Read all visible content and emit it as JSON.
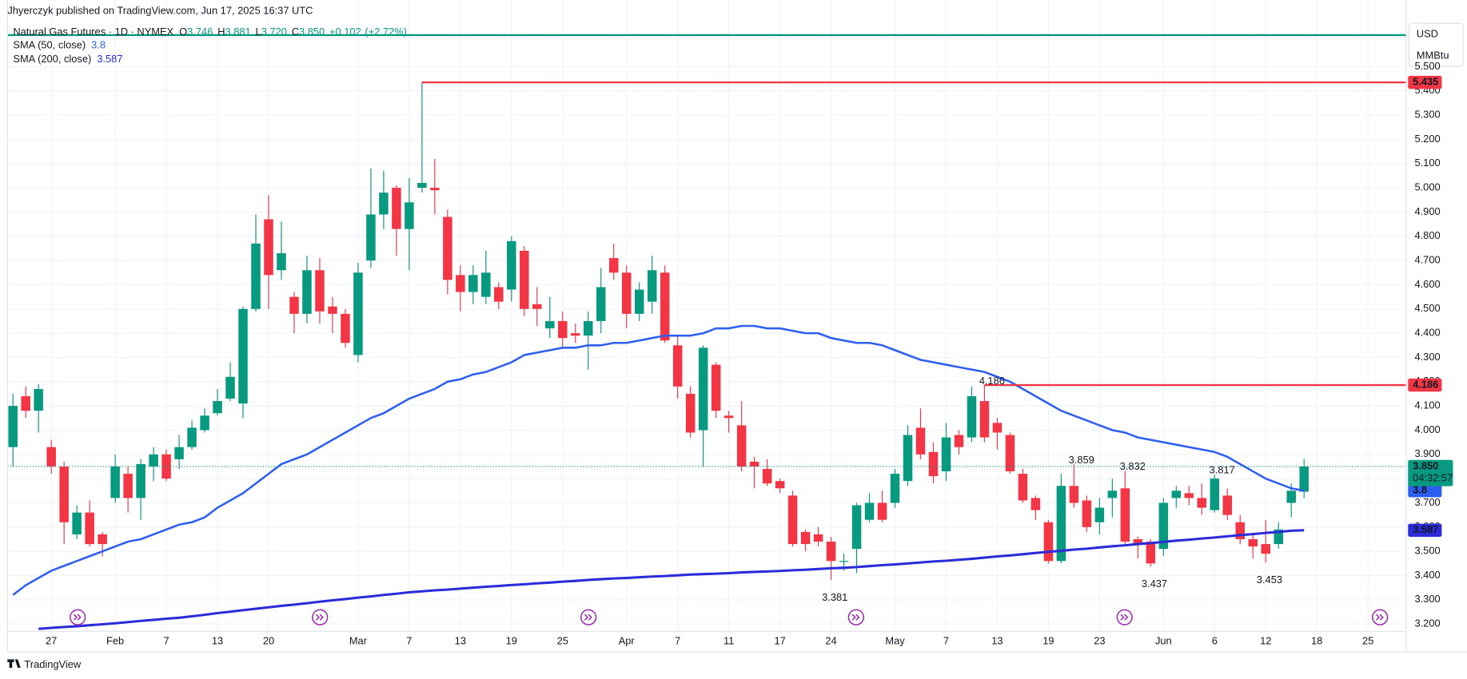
{
  "header": {
    "byline": "Jhyerczyk published on TradingView.com, Jun 17, 2025 16:37 UTC"
  },
  "footer": {
    "brand": "TradingView"
  },
  "chart_data": {
    "type": "candlestick",
    "title": "Natural Gas Futures · 1D · NYMEX",
    "ohlc_letters": [
      "O",
      "H",
      "L",
      "C"
    ],
    "last_bar_labels": {
      "open": "3.746",
      "high": "3.881",
      "low": "3.720",
      "close": "3.850"
    },
    "change": {
      "value": 0.102,
      "label": "+0.102"
    },
    "change_pct": {
      "value": 2.72,
      "label": "(+2.72%)"
    },
    "countdown": "04:32:57",
    "currency": "USD",
    "unit": "MMBtu",
    "up_color": "#089981",
    "down_color": "#f23645",
    "grid": true,
    "categories": [
      null,
      null,
      null,
      "27",
      null,
      null,
      null,
      null,
      "Feb",
      null,
      null,
      null,
      "7",
      null,
      null,
      null,
      "13",
      null,
      null,
      null,
      "20",
      null,
      null,
      null,
      null,
      null,
      null,
      "Mar",
      null,
      null,
      null,
      "7",
      null,
      null,
      null,
      "13",
      null,
      null,
      null,
      "19",
      null,
      null,
      null,
      "25",
      null,
      null,
      null,
      null,
      "Apr",
      null,
      null,
      null,
      "7",
      null,
      null,
      null,
      "11",
      null,
      null,
      null,
      "17",
      null,
      null,
      null,
      "24",
      null,
      null,
      null,
      null,
      "May",
      null,
      null,
      null,
      "7",
      null,
      null,
      null,
      "13",
      null,
      null,
      null,
      "19",
      null,
      null,
      null,
      "23",
      null,
      null,
      null,
      null,
      "Jun",
      null,
      null,
      null,
      "6",
      null,
      null,
      null,
      "12",
      null,
      null,
      null,
      "18",
      null,
      null,
      null,
      "25",
      null,
      null,
      null
    ],
    "open": [
      3.93,
      4.14,
      4.08,
      3.93,
      3.85,
      3.57,
      3.66,
      3.57,
      3.72,
      3.82,
      3.72,
      3.85,
      3.9,
      3.88,
      3.93,
      4.0,
      4.07,
      4.13,
      4.11,
      4.5,
      4.87,
      4.66,
      4.55,
      4.48,
      4.66,
      4.51,
      4.48,
      4.31,
      4.7,
      4.89,
      5.0,
      4.83,
      5.0,
      5.0,
      4.88,
      4.64,
      4.57,
      4.55,
      4.59,
      4.58,
      4.74,
      4.52,
      4.42,
      4.45,
      4.4,
      4.39,
      4.45,
      4.71,
      4.65,
      4.48,
      4.53,
      4.65,
      4.35,
      4.15,
      4.0,
      4.27,
      4.06,
      4.02,
      3.87,
      3.84,
      3.79,
      3.73,
      3.58,
      3.57,
      3.54,
      3.46,
      3.51,
      3.63,
      3.7,
      3.7,
      3.79,
      4.01,
      3.91,
      3.83,
      3.98,
      3.97,
      4.12,
      4.03,
      3.98,
      3.82,
      3.72,
      3.62,
      3.46,
      3.77,
      3.71,
      3.62,
      3.72,
      3.76,
      3.55,
      3.54,
      3.51,
      3.72,
      3.74,
      3.72,
      3.67,
      3.73,
      3.62,
      3.55,
      3.53,
      3.53,
      3.7,
      3.746,
      null,
      null,
      null,
      null,
      null,
      null,
      null,
      null
    ],
    "high": [
      4.15,
      4.18,
      4.19,
      3.96,
      3.87,
      3.69,
      3.71,
      3.58,
      3.9,
      3.85,
      3.88,
      3.93,
      3.92,
      3.98,
      4.04,
      4.09,
      4.17,
      4.28,
      4.51,
      4.89,
      4.97,
      4.86,
      4.57,
      4.72,
      4.71,
      4.55,
      4.5,
      4.69,
      5.08,
      5.07,
      5.01,
      5.04,
      5.435,
      5.12,
      4.91,
      4.68,
      4.68,
      4.74,
      4.61,
      4.8,
      4.76,
      4.59,
      4.55,
      4.49,
      4.44,
      4.49,
      4.67,
      4.77,
      4.68,
      4.61,
      4.72,
      4.68,
      4.39,
      4.18,
      4.35,
      4.28,
      4.08,
      4.12,
      3.89,
      3.88,
      3.8,
      3.75,
      3.59,
      3.6,
      3.56,
      3.49,
      3.7,
      3.74,
      3.75,
      3.84,
      4.02,
      4.09,
      3.95,
      4.03,
      4.0,
      4.18,
      4.186,
      4.05,
      3.99,
      3.84,
      3.73,
      3.63,
      3.82,
      3.859,
      3.73,
      3.72,
      3.8,
      3.832,
      3.56,
      3.55,
      3.72,
      3.77,
      3.77,
      3.78,
      3.817,
      3.76,
      3.65,
      3.57,
      3.63,
      3.62,
      3.78,
      3.881,
      null,
      null,
      null,
      null,
      null,
      null,
      null,
      null
    ],
    "low": [
      3.85,
      4.05,
      3.99,
      3.82,
      3.53,
      3.55,
      3.52,
      3.48,
      3.7,
      3.66,
      3.63,
      3.79,
      3.79,
      3.84,
      3.92,
      3.99,
      4.06,
      4.12,
      4.05,
      4.49,
      4.5,
      4.62,
      4.4,
      4.44,
      4.44,
      4.4,
      4.34,
      4.28,
      4.67,
      4.83,
      4.72,
      4.66,
      4.98,
      4.89,
      4.56,
      4.49,
      4.52,
      4.52,
      4.5,
      4.53,
      4.47,
      4.43,
      4.38,
      4.34,
      4.36,
      4.25,
      4.4,
      4.62,
      4.42,
      4.45,
      4.48,
      4.36,
      4.13,
      3.97,
      3.85,
      4.05,
      3.99,
      3.83,
      3.76,
      3.77,
      3.74,
      3.52,
      3.5,
      3.52,
      3.381,
      3.42,
      3.41,
      3.62,
      3.62,
      3.68,
      3.77,
      3.88,
      3.78,
      3.79,
      3.9,
      3.95,
      3.95,
      3.92,
      3.82,
      3.7,
      3.63,
      3.45,
      3.45,
      3.68,
      3.58,
      3.57,
      3.64,
      3.53,
      3.47,
      3.437,
      3.48,
      3.68,
      3.69,
      3.65,
      3.66,
      3.63,
      3.53,
      3.47,
      3.453,
      3.51,
      3.64,
      3.72,
      null,
      null,
      null,
      null,
      null,
      null,
      null,
      null
    ],
    "close": [
      4.1,
      4.08,
      4.17,
      3.85,
      3.62,
      3.66,
      3.53,
      3.53,
      3.85,
      3.72,
      3.86,
      3.9,
      3.8,
      3.93,
      4.01,
      4.06,
      4.12,
      4.22,
      4.5,
      4.77,
      4.64,
      4.73,
      4.48,
      4.66,
      4.49,
      4.48,
      4.36,
      4.65,
      4.89,
      4.98,
      4.83,
      4.94,
      5.02,
      4.99,
      4.62,
      4.57,
      4.64,
      4.65,
      4.53,
      4.78,
      4.5,
      4.5,
      4.45,
      4.38,
      4.39,
      4.45,
      4.59,
      4.65,
      4.48,
      4.58,
      4.66,
      4.37,
      4.18,
      3.99,
      4.34,
      4.08,
      4.05,
      3.85,
      3.85,
      3.78,
      3.76,
      3.53,
      3.53,
      3.54,
      3.46,
      3.46,
      3.69,
      3.7,
      3.63,
      3.82,
      3.98,
      3.9,
      3.81,
      3.97,
      3.93,
      4.14,
      3.97,
      3.99,
      3.83,
      3.71,
      3.67,
      3.46,
      3.77,
      3.7,
      3.6,
      3.68,
      3.75,
      3.54,
      3.53,
      3.45,
      3.7,
      3.75,
      3.72,
      3.68,
      3.8,
      3.65,
      3.55,
      3.52,
      3.49,
      3.59,
      3.75,
      3.85,
      null,
      null,
      null,
      null,
      null,
      null,
      null,
      null
    ],
    "indicators": [
      {
        "name": "SMA (50, close)",
        "color": "#2f5ff0",
        "value_label": "3.8",
        "values": [
          3.32,
          3.36,
          3.39,
          3.42,
          3.44,
          3.46,
          3.48,
          3.5,
          3.52,
          3.54,
          3.55,
          3.57,
          3.59,
          3.61,
          3.62,
          3.64,
          3.68,
          3.71,
          3.74,
          3.78,
          3.82,
          3.86,
          3.88,
          3.9,
          3.93,
          3.96,
          3.99,
          4.02,
          4.05,
          4.07,
          4.1,
          4.13,
          4.15,
          4.17,
          4.2,
          4.21,
          4.23,
          4.24,
          4.26,
          4.28,
          4.31,
          4.32,
          4.33,
          4.34,
          4.34,
          4.35,
          4.35,
          4.36,
          4.36,
          4.37,
          4.38,
          4.39,
          4.39,
          4.39,
          4.4,
          4.42,
          4.42,
          4.43,
          4.43,
          4.42,
          4.42,
          4.41,
          4.4,
          4.4,
          4.38,
          4.37,
          4.36,
          4.36,
          4.35,
          4.33,
          4.31,
          4.29,
          4.28,
          4.27,
          4.26,
          4.25,
          4.24,
          4.22,
          4.2,
          4.17,
          4.14,
          4.11,
          4.08,
          4.06,
          4.04,
          4.02,
          4.0,
          3.99,
          3.97,
          3.96,
          3.95,
          3.94,
          3.93,
          3.92,
          3.91,
          3.89,
          3.86,
          3.83,
          3.8,
          3.78,
          3.76,
          3.75,
          null,
          null,
          null,
          null,
          null,
          null,
          null,
          null
        ]
      },
      {
        "name": "SMA (200, close)",
        "color": "#2b2bd9",
        "values": [
          null,
          null,
          3.18,
          3.184,
          3.188,
          3.191,
          3.195,
          3.199,
          3.203,
          3.208,
          3.213,
          3.217,
          3.222,
          3.226,
          3.232,
          3.238,
          3.245,
          3.251,
          3.257,
          3.263,
          3.269,
          3.275,
          3.28,
          3.286,
          3.292,
          3.298,
          3.303,
          3.309,
          3.314,
          3.32,
          3.325,
          3.331,
          3.335,
          3.339,
          3.342,
          3.346,
          3.35,
          3.354,
          3.357,
          3.361,
          3.364,
          3.368,
          3.371,
          3.375,
          3.378,
          3.382,
          3.385,
          3.388,
          3.39,
          3.393,
          3.396,
          3.398,
          3.401,
          3.404,
          3.406,
          3.408,
          3.41,
          3.413,
          3.415,
          3.417,
          3.419,
          3.422,
          3.424,
          3.427,
          3.43,
          3.432,
          3.435,
          3.439,
          3.443,
          3.446,
          3.45,
          3.454,
          3.458,
          3.461,
          3.465,
          3.469,
          3.474,
          3.479,
          3.483,
          3.488,
          3.493,
          3.498,
          3.502,
          3.507,
          3.511,
          3.516,
          3.521,
          3.525,
          3.53,
          3.534,
          3.539,
          3.544,
          3.548,
          3.553,
          3.557,
          3.562,
          3.567,
          3.571,
          3.576,
          3.58,
          3.585,
          3.587,
          null,
          null,
          null,
          null,
          null,
          null,
          null,
          null
        ]
      }
    ],
    "levels": [
      {
        "value": 5.435,
        "color": "#f23645"
      },
      {
        "value": 4.186,
        "color": "#f23645"
      },
      {
        "value": 5.63,
        "color": "#089981"
      }
    ],
    "annotations": [
      4.186,
      3.859,
      3.832,
      3.817,
      3.381,
      3.437,
      3.453
    ],
    "ylim": [
      3.17,
      5.69
    ],
    "yticks": [
      {
        "value": 3.2,
        "label": "3.200"
      },
      {
        "value": 3.3,
        "label": "3.300"
      },
      {
        "value": 3.4,
        "label": "3.400"
      },
      {
        "value": 3.5,
        "label": "3.500"
      },
      {
        "value": 3.6,
        "label": "3.600"
      },
      {
        "value": 3.7,
        "label": "3.700"
      },
      {
        "value": 3.8,
        "label": "3.800"
      },
      {
        "value": 3.9,
        "label": "3.900"
      },
      {
        "value": 4.0,
        "label": "4.000"
      },
      {
        "value": 4.1,
        "label": "4.100"
      },
      {
        "value": 4.2,
        "label": "4.200"
      },
      {
        "value": 4.3,
        "label": "4.300"
      },
      {
        "value": 4.4,
        "label": "4.400"
      },
      {
        "value": 4.5,
        "label": "4.500"
      },
      {
        "value": 4.6,
        "label": "4.600"
      },
      {
        "value": 4.7,
        "label": "4.700"
      },
      {
        "value": 4.8,
        "label": "4.800"
      },
      {
        "value": 4.9,
        "label": "4.900"
      },
      {
        "value": 5.0,
        "label": "5.000"
      },
      {
        "value": 5.1,
        "label": "5.100"
      },
      {
        "value": 5.2,
        "label": "5.200"
      },
      {
        "value": 5.3,
        "label": "5.300"
      },
      {
        "value": 5.4,
        "label": "5.400"
      },
      {
        "value": 5.5,
        "label": "5.500"
      }
    ]
  }
}
